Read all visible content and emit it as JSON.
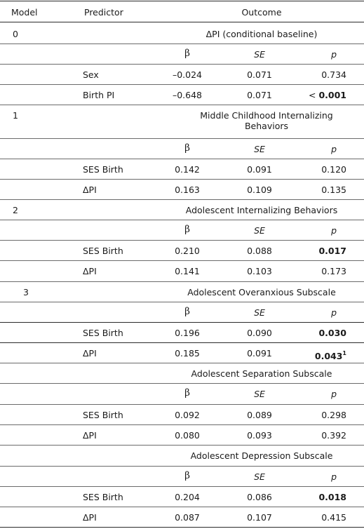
{
  "header": {
    "model": "Model",
    "predictor": "Predictor",
    "outcome": "Outcome"
  },
  "coef_labels": {
    "beta": "β",
    "se": "SE",
    "p": "p"
  },
  "blocks": [
    {
      "model": "0",
      "title": "ΔPI (conditional baseline)",
      "rows": [
        {
          "predictor": "Sex",
          "beta": "–0.024",
          "se": "0.071",
          "p": "0.734",
          "p_bold": false
        },
        {
          "predictor": "Birth  PI",
          "beta": "–0.648",
          "se": "0.071",
          "p_prefix": "< ",
          "p": "0.001",
          "p_bold": true
        }
      ]
    },
    {
      "model": "1",
      "title": "Middle Childhood Internalizing Behaviors",
      "rows": [
        {
          "predictor": "SES Birth",
          "beta": "0.142",
          "se": "0.091",
          "p": "0.120",
          "p_bold": false
        },
        {
          "predictor": "ΔPI",
          "beta": "0.163",
          "se": "0.109",
          "p": "0.135",
          "p_bold": false
        }
      ]
    },
    {
      "model": "2",
      "title": "Adolescent Internalizing Behaviors",
      "rows": [
        {
          "predictor": "SES Birth",
          "beta": "0.210",
          "se": "0.088",
          "p": "0.017",
          "p_bold": true
        },
        {
          "predictor": "ΔPI",
          "beta": "0.141",
          "se": "0.103",
          "p": "0.173",
          "p_bold": false
        }
      ]
    },
    {
      "model": "3",
      "title": "Adolescent Overanxious Subscale",
      "rows": [
        {
          "predictor": "SES Birth",
          "beta": "0.196",
          "se": "0.090",
          "p": "0.030",
          "p_bold": true
        },
        {
          "predictor": "ΔPI",
          "beta": "0.185",
          "se": "0.091",
          "p": "0.043",
          "p_sup": "1",
          "p_bold": true
        }
      ]
    },
    {
      "model": "",
      "title": "Adolescent Separation Subscale",
      "rows": [
        {
          "predictor": "SES Birth",
          "beta": "0.092",
          "se": "0.089",
          "p": "0.298",
          "p_bold": false
        },
        {
          "predictor": "ΔPI",
          "beta": "0.080",
          "se": "0.093",
          "p": "0.392",
          "p_bold": false
        }
      ]
    },
    {
      "model": "",
      "title": "Adolescent Depression Subscale",
      "rows": [
        {
          "predictor": "SES Birth",
          "beta": "0.204",
          "se": "0.086",
          "p": "0.018",
          "p_bold": true
        },
        {
          "predictor": "ΔPI",
          "beta": "0.087",
          "se": "0.107",
          "p": "0.415",
          "p_bold": false
        }
      ]
    }
  ]
}
